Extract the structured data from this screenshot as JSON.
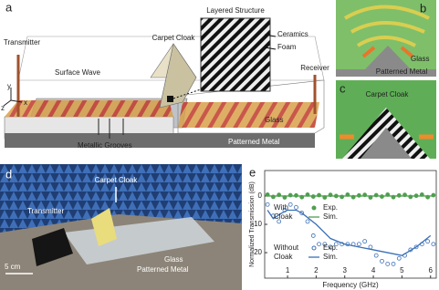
{
  "panels": {
    "a": {
      "letter": "a",
      "transmitter": "Transmitter",
      "carpet_cloak": "Carpet Cloak",
      "inset_title": "Layered Structure",
      "ceramics": "Ceramics",
      "foam": "Foam",
      "surface_wave": "Surface Wave",
      "receiver": "Receiver",
      "glass": "Glass",
      "grooves": "Metallic Grooves",
      "metal": "Patterned Metal",
      "axis_x": "x",
      "axis_y": "y",
      "axis_z": "z"
    },
    "b": {
      "letter": "b",
      "glass": "Glass",
      "metal": "Patterned Metal"
    },
    "c": {
      "letter": "c",
      "carpet_cloak": "Carpet Cloak"
    },
    "d": {
      "letter": "d",
      "carpet_cloak": "Carpet Cloak",
      "transmitter": "Transmitter",
      "scale": "5 cm",
      "glass": "Glass",
      "metal": "Patterned Metal"
    },
    "e": {
      "letter": "e"
    }
  },
  "chart_data": {
    "type": "line",
    "xlabel": "Frequency (GHz)",
    "ylabel": "Normalized Transmission (dB)",
    "xlim": [
      0.2,
      6.2
    ],
    "xticks": [
      1,
      2,
      3,
      4,
      5,
      6
    ],
    "ylim": [
      -29,
      9
    ],
    "yticks": [
      -20,
      -10,
      0
    ],
    "legend_groups": [
      {
        "lines": [
          "With",
          "Cloak"
        ],
        "color": "#4f9f4f"
      },
      {
        "lines": [
          "Without",
          "Cloak"
        ],
        "color": "#3a6fb5"
      }
    ],
    "series": [
      {
        "name": "Exp.",
        "group": 0,
        "style": "dots",
        "color": "#4f9f4f",
        "x": [
          0.3,
          0.5,
          0.7,
          0.9,
          1.1,
          1.3,
          1.5,
          1.7,
          1.9,
          2.1,
          2.3,
          2.5,
          2.7,
          2.9,
          3.1,
          3.3,
          3.5,
          3.7,
          3.9,
          4.1,
          4.3,
          4.5,
          4.7,
          4.9,
          5.1,
          5.3,
          5.5,
          5.7,
          5.9,
          6.1
        ],
        "values": [
          0.5,
          -0.3,
          0.4,
          -0.5,
          0.3,
          0.2,
          -0.4,
          0.5,
          -0.2,
          0.3,
          -0.5,
          0.4,
          0,
          -0.3,
          0.5,
          -0.4,
          0.2,
          0.4,
          -0.5,
          0.3,
          -0.2,
          0.5,
          -0.4,
          0.2,
          0.4,
          -0.3,
          0.1,
          0.5,
          -0.4,
          0.3
        ]
      },
      {
        "name": "Sim.",
        "group": 0,
        "style": "line",
        "color": "#4f9f4f",
        "x": [
          0.3,
          6.1
        ],
        "values": [
          0,
          0
        ]
      },
      {
        "name": "Exp.",
        "group": 1,
        "style": "circles",
        "color": "#3a6fb5",
        "x": [
          0.3,
          0.5,
          0.7,
          0.9,
          1.1,
          1.3,
          1.5,
          1.7,
          1.9,
          2.1,
          2.3,
          2.5,
          2.7,
          2.9,
          3.1,
          3.3,
          3.5,
          3.7,
          3.9,
          4.1,
          4.3,
          4.5,
          4.7,
          4.9,
          5.1,
          5.3,
          5.5,
          5.7,
          5.9,
          6.1
        ],
        "values": [
          -3,
          -7,
          -9,
          -5,
          -3,
          -4,
          -6,
          -9,
          -14,
          -17,
          -17,
          -18,
          -17,
          -17,
          -17,
          -17,
          -17,
          -16,
          -18,
          -21,
          -23,
          -24,
          -24,
          -22,
          -21,
          -19,
          -18,
          -17,
          -16,
          -17
        ]
      },
      {
        "name": "Sim.",
        "group": 1,
        "style": "line",
        "color": "#3a6fb5",
        "x": [
          0.3,
          0.5,
          0.8,
          1.0,
          1.3,
          1.5,
          2.0,
          2.5,
          3.0,
          3.5,
          4.0,
          4.5,
          5.0,
          5.5,
          6.0
        ],
        "values": [
          -5,
          -8,
          -6,
          -5,
          -5,
          -6,
          -10,
          -15,
          -17,
          -18,
          -19,
          -20,
          -21,
          -18,
          -14
        ]
      }
    ]
  }
}
